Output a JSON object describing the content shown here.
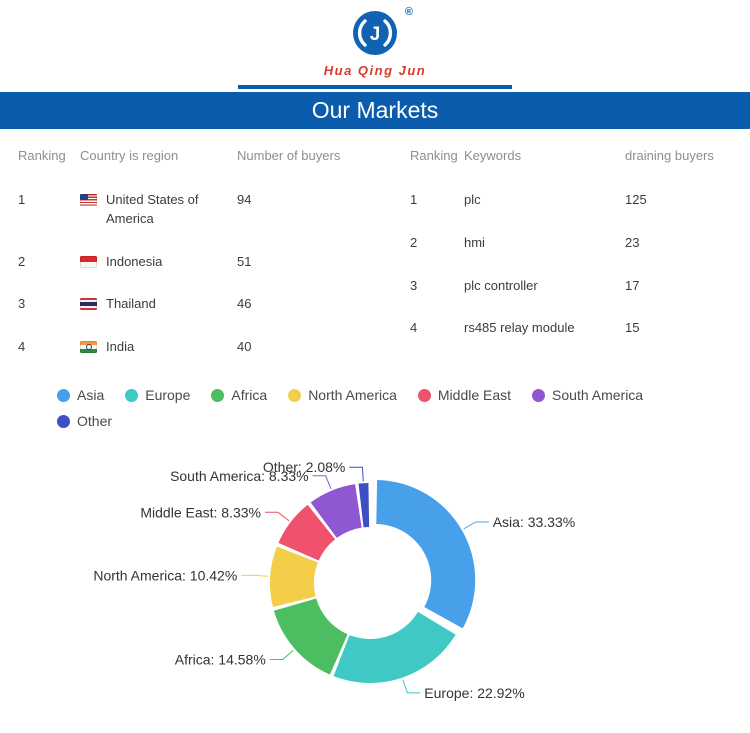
{
  "header": {
    "brand_name": "Hua Qing Jun",
    "registered_mark": "®",
    "banner_title": "Our Markets",
    "brand_color": "#D93A2B",
    "banner_color": "#0B5CAD"
  },
  "tables": {
    "countries": {
      "headers": [
        "Ranking",
        "Country is region",
        "Number of buyers"
      ],
      "rows": [
        {
          "rank": "1",
          "flag": "us",
          "country": "United States of America",
          "buyers": "94"
        },
        {
          "rank": "2",
          "flag": "id",
          "country": "Indonesia",
          "buyers": "51"
        },
        {
          "rank": "3",
          "flag": "th",
          "country": "Thailand",
          "buyers": "46"
        },
        {
          "rank": "4",
          "flag": "in",
          "country": "India",
          "buyers": "40"
        }
      ]
    },
    "keywords": {
      "headers": [
        "Ranking",
        "Keywords",
        "draining buyers"
      ],
      "rows": [
        {
          "rank": "1",
          "keyword": "plc",
          "buyers": "125"
        },
        {
          "rank": "2",
          "keyword": "hmi",
          "buyers": "23"
        },
        {
          "rank": "3",
          "keyword": "plc controller",
          "buyers": "17"
        },
        {
          "rank": "4",
          "keyword": "rs485 relay module",
          "buyers": "15"
        }
      ]
    }
  },
  "chart_data": {
    "type": "pie",
    "donut": true,
    "title": "",
    "legend_position": "top",
    "categories": [
      "Asia",
      "Europe",
      "Africa",
      "North America",
      "Middle East",
      "South America",
      "Other"
    ],
    "values": [
      33.33,
      22.92,
      14.58,
      10.42,
      8.33,
      8.33,
      2.08
    ],
    "labels": [
      "Asia: 33.33%",
      "Europe: 22.92%",
      "Africa: 14.58%",
      "North America: 10.42%",
      "Middle East: 8.33%",
      "South America: 8.33%",
      "Other: 2.08%"
    ],
    "colors": [
      "#49A0EA",
      "#3FC8C4",
      "#4CBE61",
      "#F3CE49",
      "#F0516D",
      "#9057D3",
      "#3D4EC6"
    ],
    "start_angle_deg": 0,
    "direction": "clockwise",
    "exploded_slice": "Asia"
  }
}
